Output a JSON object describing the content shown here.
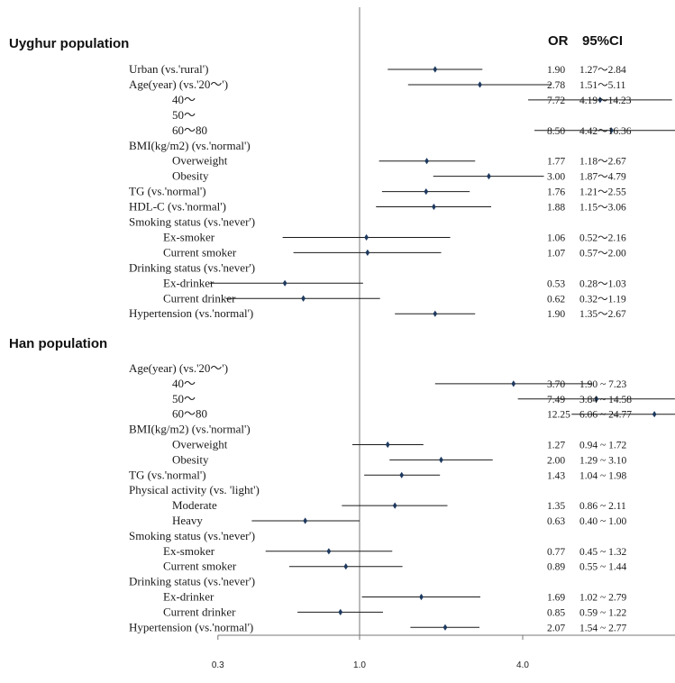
{
  "chart_data": {
    "type": "forest",
    "x_scale": "log2",
    "reference_value": 1.0,
    "x_ticks": [
      "0.3",
      "1.0",
      "4.0",
      "16.0",
      "64.0"
    ],
    "xlim": [
      0.3,
      64
    ],
    "column_headers": {
      "or": "OR",
      "ci": "95%CI"
    },
    "colors": {
      "marker": "#1f3a5f",
      "line": "#1a1a1a",
      "axis": "#777777"
    },
    "groups": [
      {
        "title": "Uyghur population",
        "rows": [
          {
            "label": "Urban (vs.'rural')",
            "indent": 0,
            "or": 1.9,
            "lo": 1.27,
            "hi": 2.84,
            "or_text": "1.90",
            "ci_text": "1.27～2.84"
          },
          {
            "label": "Age(year) (vs.'20～')",
            "indent": 0,
            "or": 2.78,
            "lo": 1.51,
            "hi": 5.11,
            "or_text": "2.78",
            "ci_text": "1.51～5.11"
          },
          {
            "label": "40～",
            "indent": 2,
            "or": 7.72,
            "lo": 4.19,
            "hi": 14.23,
            "or_text": "7.72",
            "ci_text": "4.19～14.23"
          },
          {
            "label": "50～",
            "indent": 2,
            "or": null,
            "lo": null,
            "hi": null,
            "or_text": "",
            "ci_text": ""
          },
          {
            "label": "60～80",
            "indent": 2,
            "or": 8.5,
            "lo": 4.42,
            "hi": 16.36,
            "or_text": "8.50",
            "ci_text": "4.42～16.36"
          },
          {
            "label": "BMI(kg/m2) (vs.'normal')",
            "indent": 0,
            "or": null,
            "lo": null,
            "hi": null,
            "or_text": "",
            "ci_text": ""
          },
          {
            "label": "Overweight",
            "indent": 2,
            "or": 1.77,
            "lo": 1.18,
            "hi": 2.67,
            "or_text": "1.77",
            "ci_text": "1.18～2.67"
          },
          {
            "label": "Obesity",
            "indent": 2,
            "or": 3.0,
            "lo": 1.87,
            "hi": 4.79,
            "or_text": "3.00",
            "ci_text": "1.87～4.79"
          },
          {
            "label": "TG (vs.'normal')",
            "indent": 0,
            "or": 1.76,
            "lo": 1.21,
            "hi": 2.55,
            "or_text": "1.76",
            "ci_text": "1.21～2.55"
          },
          {
            "label": "HDL-C (vs.'normal')",
            "indent": 0,
            "or": 1.88,
            "lo": 1.15,
            "hi": 3.06,
            "or_text": "1.88",
            "ci_text": "1.15～3.06"
          },
          {
            "label": "Smoking status (vs.'never')",
            "indent": 0,
            "or": null,
            "lo": null,
            "hi": null,
            "or_text": "",
            "ci_text": ""
          },
          {
            "label": "Ex-smoker",
            "indent": 1,
            "or": 1.06,
            "lo": 0.52,
            "hi": 2.16,
            "or_text": "1.06",
            "ci_text": "0.52～2.16"
          },
          {
            "label": "Current smoker",
            "indent": 1,
            "or": 1.07,
            "lo": 0.57,
            "hi": 2.0,
            "or_text": "1.07",
            "ci_text": "0.57～2.00"
          },
          {
            "label": "Drinking status (vs.'never')",
            "indent": 0,
            "or": null,
            "lo": null,
            "hi": null,
            "or_text": "",
            "ci_text": ""
          },
          {
            "label": "Ex-drinker",
            "indent": 1,
            "or": 0.53,
            "lo": 0.28,
            "hi": 1.03,
            "or_text": "0.53",
            "ci_text": "0.28～1.03"
          },
          {
            "label": "Current drinker",
            "indent": 1,
            "or": 0.62,
            "lo": 0.32,
            "hi": 1.19,
            "or_text": "0.62",
            "ci_text": "0.32～1.19"
          },
          {
            "label": "Hypertension (vs.'normal')",
            "indent": 0,
            "or": 1.9,
            "lo": 1.35,
            "hi": 2.67,
            "or_text": "1.90",
            "ci_text": "1.35～2.67"
          }
        ]
      },
      {
        "title": "Han population",
        "rows": [
          {
            "label": "Age(year) (vs.'20～')",
            "indent": 0,
            "or": null,
            "lo": null,
            "hi": null,
            "or_text": "",
            "ci_text": ""
          },
          {
            "label": "40～",
            "indent": 2,
            "or": 3.7,
            "lo": 1.9,
            "hi": 7.23,
            "or_text": "3.70",
            "ci_text": "1.90 ~ 7.23"
          },
          {
            "label": "50～",
            "indent": 2,
            "or": 7.49,
            "lo": 3.84,
            "hi": 14.58,
            "or_text": "7.49",
            "ci_text": "3.84 ~ 14.58"
          },
          {
            "label": "60～80",
            "indent": 2,
            "or": 12.25,
            "lo": 6.06,
            "hi": 24.77,
            "or_text": "12.25",
            "ci_text": "6.06 ~ 24.77"
          },
          {
            "label": "BMI(kg/m2) (vs.'normal')",
            "indent": 0,
            "or": null,
            "lo": null,
            "hi": null,
            "or_text": "",
            "ci_text": ""
          },
          {
            "label": "Overweight",
            "indent": 2,
            "or": 1.27,
            "lo": 0.94,
            "hi": 1.72,
            "or_text": "1.27",
            "ci_text": "0.94 ~ 1.72"
          },
          {
            "label": "Obesity",
            "indent": 2,
            "or": 2.0,
            "lo": 1.29,
            "hi": 3.1,
            "or_text": "2.00",
            "ci_text": "1.29 ~ 3.10"
          },
          {
            "label": "TG (vs.'normal')",
            "indent": 0,
            "or": 1.43,
            "lo": 1.04,
            "hi": 1.98,
            "or_text": "1.43",
            "ci_text": "1.04 ~ 1.98"
          },
          {
            "label": "Physical activity (vs. 'light')",
            "indent": 0,
            "or": null,
            "lo": null,
            "hi": null,
            "or_text": "",
            "ci_text": ""
          },
          {
            "label": "Moderate",
            "indent": 2,
            "or": 1.35,
            "lo": 0.86,
            "hi": 2.11,
            "or_text": "1.35",
            "ci_text": "0.86 ~ 2.11"
          },
          {
            "label": "Heavy",
            "indent": 2,
            "or": 0.63,
            "lo": 0.4,
            "hi": 1.0,
            "or_text": "0.63",
            "ci_text": "0.40 ~ 1.00"
          },
          {
            "label": "Smoking status (vs.'never')",
            "indent": 0,
            "or": null,
            "lo": null,
            "hi": null,
            "or_text": "",
            "ci_text": ""
          },
          {
            "label": "Ex-smoker",
            "indent": 1,
            "or": 0.77,
            "lo": 0.45,
            "hi": 1.32,
            "or_text": "0.77",
            "ci_text": "0.45 ~ 1.32"
          },
          {
            "label": "Current smoker",
            "indent": 1,
            "or": 0.89,
            "lo": 0.55,
            "hi": 1.44,
            "or_text": "0.89",
            "ci_text": "0.55 ~ 1.44"
          },
          {
            "label": "Drinking status (vs.'never')",
            "indent": 0,
            "or": null,
            "lo": null,
            "hi": null,
            "or_text": "",
            "ci_text": ""
          },
          {
            "label": "Ex-drinker",
            "indent": 1,
            "or": 1.69,
            "lo": 1.02,
            "hi": 2.79,
            "or_text": "1.69",
            "ci_text": "1.02 ~ 2.79"
          },
          {
            "label": "Current drinker",
            "indent": 1,
            "or": 0.85,
            "lo": 0.59,
            "hi": 1.22,
            "or_text": "0.85",
            "ci_text": "0.59 ~ 1.22"
          },
          {
            "label": "Hypertension (vs.'normal')",
            "indent": 0,
            "or": 2.07,
            "lo": 1.54,
            "hi": 2.77,
            "or_text": "2.07",
            "ci_text": "1.54 ~ 2.77"
          }
        ]
      }
    ]
  }
}
